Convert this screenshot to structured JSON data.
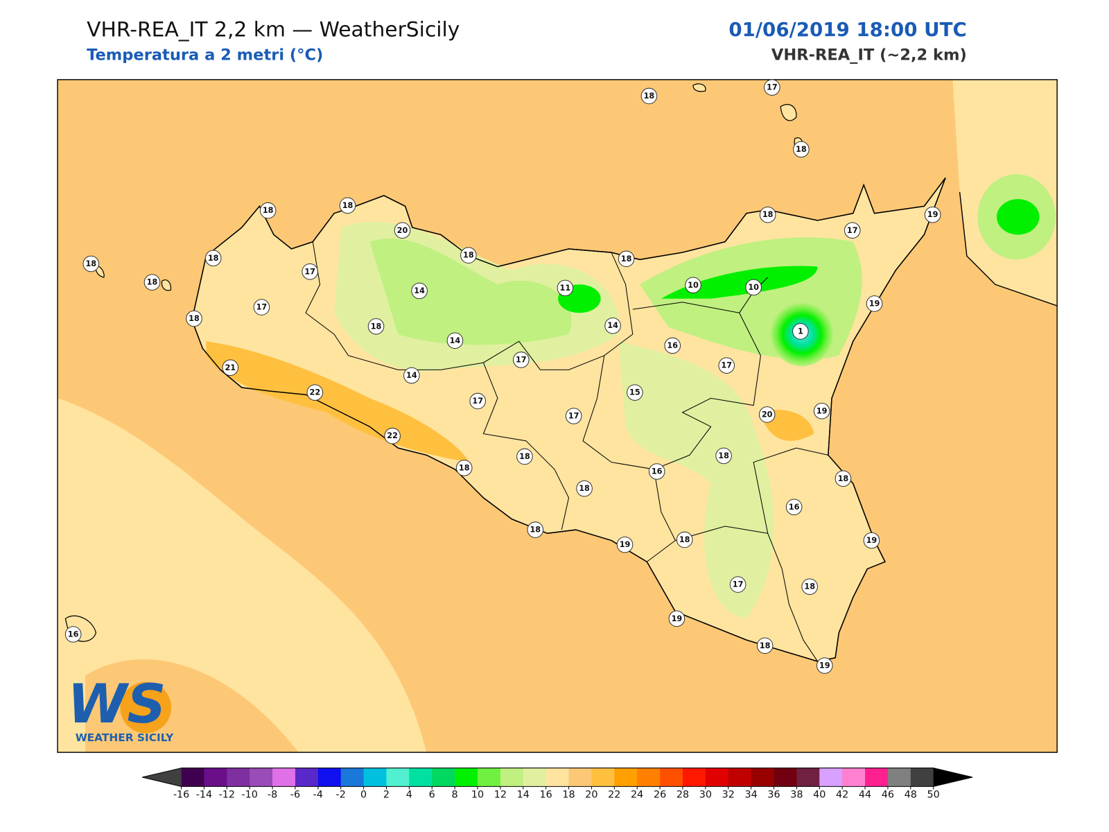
{
  "header": {
    "title": "VHR-REA_IT 2,2 km — WeatherSicily",
    "subtitle": "Temperatura a 2 metri (°C)",
    "datetime": "01/06/2019 18:00 UTC",
    "model": "VHR-REA_IT (~2,2 km)"
  },
  "logo": {
    "mark": "WS",
    "name": "WEATHER SICILY"
  },
  "stations": [
    18,
    17,
    18,
    18,
    18,
    20,
    18,
    18,
    18,
    17,
    18,
    18,
    18,
    17,
    19,
    14,
    17,
    18,
    18,
    11,
    10,
    10,
    19,
    1,
    14,
    16,
    14,
    17,
    21,
    14,
    17,
    22,
    15,
    17,
    17,
    20,
    19,
    22,
    18,
    18,
    18,
    16,
    18,
    18,
    16,
    18,
    19,
    18,
    19,
    17,
    18,
    19,
    18,
    19,
    16
  ],
  "colorbar": {
    "ticks": [
      -16,
      -14,
      -12,
      -10,
      -8,
      -6,
      -4,
      -2,
      0,
      2,
      4,
      6,
      8,
      10,
      12,
      14,
      16,
      18,
      20,
      22,
      24,
      26,
      28,
      30,
      32,
      34,
      36,
      38,
      40,
      42,
      44,
      46,
      48,
      50
    ],
    "colors": [
      "#400050",
      "#6a0e8a",
      "#7e30a0",
      "#9a4cb8",
      "#e070e8",
      "#5a28c8",
      "#1010f0",
      "#1a78d8",
      "#00c0e0",
      "#50f0d0",
      "#00e0a0",
      "#00d860",
      "#00f000",
      "#70f040",
      "#c0f080",
      "#e0f0a0",
      "#ffe4a0",
      "#fdc876",
      "#ffc040",
      "#ffa000",
      "#ff8000",
      "#ff5000",
      "#ff1800",
      "#e00000",
      "#c00000",
      "#980000",
      "#700010",
      "#702040",
      "#d8a0ff",
      "#ff80d0",
      "#ff2090",
      "#808080",
      "#404040"
    ],
    "under_color": "#404040",
    "over_color": "#000000"
  }
}
